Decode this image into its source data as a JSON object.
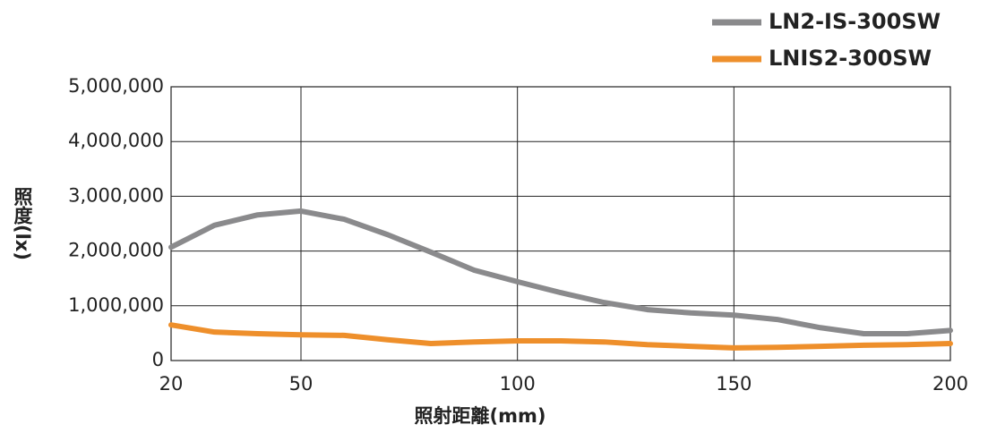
{
  "chart_data": {
    "type": "line",
    "x_label": "照射距離(mm)",
    "y_label": "照度(lx)",
    "x": [
      20,
      30,
      40,
      50,
      60,
      70,
      80,
      90,
      100,
      110,
      120,
      130,
      140,
      150,
      160,
      170,
      180,
      190,
      200
    ],
    "series": [
      {
        "name": "LN2-IS-300SW",
        "color": "#8a8a8c",
        "values": [
          2070000,
          2470000,
          2660000,
          2730000,
          2580000,
          2300000,
          1980000,
          1650000,
          1440000,
          1240000,
          1060000,
          930000,
          870000,
          830000,
          750000,
          600000,
          490000,
          490000,
          550000
        ]
      },
      {
        "name": "LNIS2-300SW",
        "color": "#ee8f2b",
        "values": [
          650000,
          520000,
          490000,
          470000,
          460000,
          380000,
          310000,
          340000,
          360000,
          360000,
          340000,
          290000,
          260000,
          230000,
          240000,
          260000,
          280000,
          290000,
          310000
        ]
      }
    ],
    "xlim": [
      20,
      200
    ],
    "xticks": [
      20,
      50,
      100,
      150,
      200
    ],
    "ylim": [
      0,
      5000000
    ],
    "yticks": [
      0,
      {
        "value": 1000000,
        "label": "1,000,000"
      },
      {
        "value": 2000000,
        "label": "2,000,000"
      },
      {
        "value": 3000000,
        "label": "3,000,000"
      },
      {
        "value": 4000000,
        "label": "4,000,000"
      },
      {
        "value": 5000000,
        "label": "5,000,000"
      }
    ],
    "grid": true,
    "legend": "top-right"
  }
}
